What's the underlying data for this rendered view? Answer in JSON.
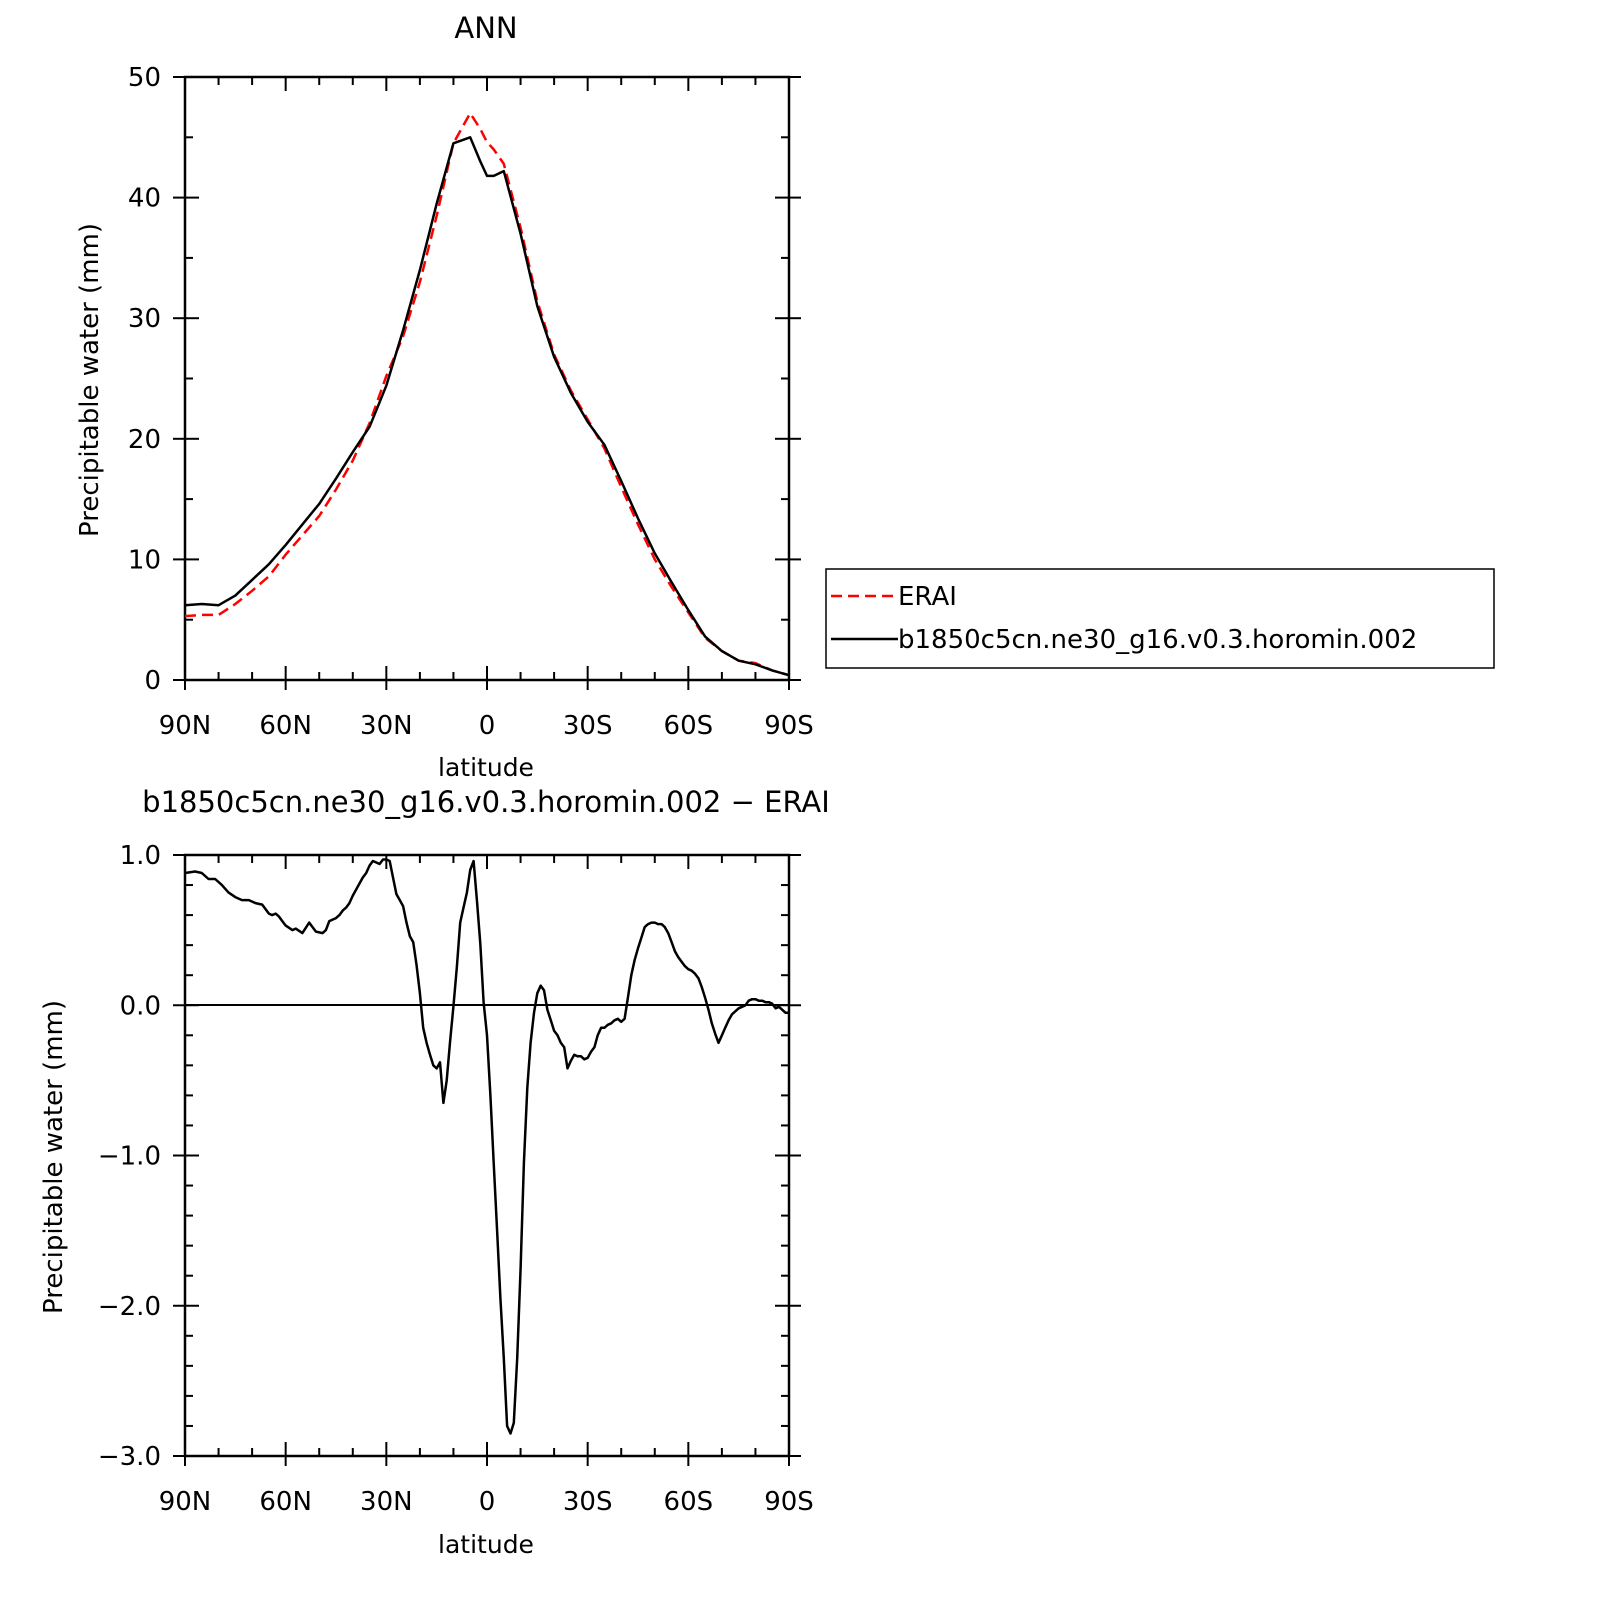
{
  "chart_data": [
    {
      "type": "line",
      "title": "ANN",
      "xlabel": "latitude",
      "ylabel": "Precipitable water (mm)",
      "xlim": [
        90,
        -90
      ],
      "ylim": [
        0,
        50
      ],
      "x_ticks": [
        {
          "value": 90,
          "label": "90N"
        },
        {
          "value": 60,
          "label": "60N"
        },
        {
          "value": 30,
          "label": "30N"
        },
        {
          "value": 0,
          "label": "0"
        },
        {
          "value": -30,
          "label": "30S"
        },
        {
          "value": -60,
          "label": "60S"
        },
        {
          "value": -90,
          "label": "90S"
        }
      ],
      "y_ticks": [
        {
          "value": 0,
          "label": "0"
        },
        {
          "value": 10,
          "label": "10"
        },
        {
          "value": 20,
          "label": "20"
        },
        {
          "value": 30,
          "label": "30"
        },
        {
          "value": 40,
          "label": "40"
        },
        {
          "value": 50,
          "label": "50"
        }
      ],
      "legend_position": "right",
      "series": [
        {
          "name": "ERAI",
          "color": "#ff0000",
          "style": "dashed",
          "x": [
            90,
            85,
            80,
            75,
            70,
            65,
            60,
            55,
            50,
            45,
            40,
            35,
            30,
            25,
            20,
            15,
            10,
            5,
            2,
            0,
            -2,
            -5,
            -10,
            -15,
            -20,
            -25,
            -30,
            -35,
            -40,
            -45,
            -50,
            -55,
            -60,
            -65,
            -70,
            -75,
            -80,
            -85,
            -90
          ],
          "values": [
            5.3,
            5.4,
            5.4,
            6.3,
            7.4,
            8.6,
            10.4,
            12.0,
            13.6,
            15.8,
            18.2,
            21.3,
            25.2,
            28.5,
            33.0,
            38.5,
            44.5,
            47.0,
            45.7,
            44.6,
            44.0,
            42.8,
            37.5,
            31.4,
            27.0,
            24.0,
            21.6,
            19.2,
            16.0,
            12.9,
            10.0,
            7.7,
            5.6,
            3.5,
            2.4,
            1.6,
            1.4,
            0.8,
            0.4
          ]
        },
        {
          "name": "b1850c5cn.ne30_g16.v0.3.horomin.002",
          "color": "#000000",
          "style": "solid",
          "x": [
            90,
            85,
            80,
            75,
            70,
            65,
            60,
            55,
            50,
            45,
            40,
            35,
            30,
            25,
            20,
            15,
            10,
            5,
            2,
            0,
            -2,
            -5,
            -10,
            -15,
            -20,
            -25,
            -30,
            -35,
            -40,
            -45,
            -50,
            -55,
            -60,
            -65,
            -70,
            -75,
            -80,
            -85,
            -90
          ],
          "values": [
            6.2,
            6.3,
            6.2,
            7.0,
            8.3,
            9.6,
            11.2,
            12.9,
            14.6,
            16.7,
            18.9,
            21.0,
            24.4,
            29.0,
            34.0,
            39.5,
            44.5,
            45.0,
            43.0,
            41.8,
            41.8,
            42.2,
            37.0,
            31.0,
            26.8,
            23.8,
            21.4,
            19.5,
            16.5,
            13.4,
            10.5,
            8.1,
            5.8,
            3.6,
            2.4,
            1.6,
            1.3,
            0.8,
            0.4
          ]
        }
      ]
    },
    {
      "type": "line",
      "title": "b1850c5cn.ne30_g16.v0.3.horomin.002 − ERAI",
      "xlabel": "latitude",
      "ylabel": "Precipitable water (mm)",
      "xlim": [
        90,
        -90
      ],
      "ylim": [
        -3,
        1
      ],
      "x_ticks": [
        {
          "value": 90,
          "label": "90N"
        },
        {
          "value": 60,
          "label": "60N"
        },
        {
          "value": 30,
          "label": "30N"
        },
        {
          "value": 0,
          "label": "0"
        },
        {
          "value": -30,
          "label": "30S"
        },
        {
          "value": -60,
          "label": "60S"
        },
        {
          "value": -90,
          "label": "90S"
        }
      ],
      "y_ticks": [
        {
          "value": 1,
          "label": "1.0"
        },
        {
          "value": 0,
          "label": "0.0"
        },
        {
          "value": -1,
          "label": "−1.0"
        },
        {
          "value": -2,
          "label": "−2.0"
        },
        {
          "value": -3,
          "label": "−3.0"
        }
      ],
      "series": [
        {
          "color": "#000000",
          "style": "solid",
          "x": [
            90,
            87,
            85,
            83,
            81,
            79,
            77,
            75,
            73,
            71,
            69,
            67,
            65,
            64,
            63,
            62,
            61,
            60,
            58,
            57,
            55,
            53,
            51,
            49,
            48,
            47,
            46,
            45,
            44,
            43,
            42,
            41,
            40,
            39,
            38,
            37,
            36,
            35,
            34,
            33,
            32,
            31,
            30,
            29,
            28,
            27,
            26,
            25,
            24,
            23,
            22,
            21,
            20,
            19,
            18,
            17,
            16,
            15,
            14,
            13,
            12,
            11,
            10,
            9,
            8,
            7,
            6,
            5,
            4,
            3,
            2,
            1,
            0,
            -1,
            -2,
            -3,
            -4,
            -5,
            -6,
            -7,
            -8,
            -9,
            -10,
            -11,
            -12,
            -13,
            -14,
            -15,
            -16,
            -17,
            -18,
            -19,
            -20,
            -21,
            -22,
            -23,
            -24,
            -25,
            -26,
            -27,
            -28,
            -29,
            -30,
            -31,
            -32,
            -33,
            -34,
            -35,
            -36,
            -37,
            -38,
            -39,
            -40,
            -41,
            -42,
            -43,
            -44,
            -45,
            -46,
            -47,
            -48,
            -49,
            -50,
            -51,
            -52,
            -53,
            -54,
            -55,
            -56,
            -57,
            -58,
            -59,
            -60,
            -61,
            -62,
            -63,
            -64,
            -65,
            -66,
            -67,
            -68,
            -69,
            -70,
            -71,
            -72,
            -73,
            -74,
            -75,
            -76,
            -77,
            -78,
            -79,
            -80,
            -81,
            -82,
            -83,
            -84,
            -85,
            -86,
            -87,
            -88,
            -89,
            -90
          ],
          "values": [
            0.88,
            0.89,
            0.88,
            0.84,
            0.84,
            0.8,
            0.75,
            0.72,
            0.7,
            0.7,
            0.68,
            0.67,
            0.61,
            0.6,
            0.61,
            0.59,
            0.56,
            0.53,
            0.5,
            0.51,
            0.48,
            0.55,
            0.49,
            0.48,
            0.5,
            0.56,
            0.57,
            0.58,
            0.6,
            0.63,
            0.65,
            0.68,
            0.73,
            0.77,
            0.81,
            0.85,
            0.88,
            0.93,
            0.96,
            0.95,
            0.94,
            0.97,
            0.97,
            0.96,
            0.85,
            0.74,
            0.7,
            0.66,
            0.55,
            0.46,
            0.42,
            0.27,
            0.08,
            -0.15,
            -0.25,
            -0.33,
            -0.4,
            -0.42,
            -0.38,
            -0.65,
            -0.5,
            -0.24,
            -0.01,
            0.25,
            0.55,
            0.65,
            0.75,
            0.9,
            0.96,
            0.7,
            0.41,
            0.02,
            -0.2,
            -0.6,
            -1.05,
            -1.5,
            -1.95,
            -2.35,
            -2.8,
            -2.85,
            -2.78,
            -2.35,
            -1.75,
            -1.05,
            -0.55,
            -0.25,
            -0.05,
            0.08,
            0.13,
            0.1,
            -0.03,
            -0.1,
            -0.17,
            -0.2,
            -0.25,
            -0.28,
            -0.42,
            -0.37,
            -0.33,
            -0.34,
            -0.34,
            -0.36,
            -0.35,
            -0.31,
            -0.28,
            -0.2,
            -0.15,
            -0.15,
            -0.13,
            -0.12,
            -0.1,
            -0.09,
            -0.11,
            -0.09,
            0.05,
            0.2,
            0.3,
            0.38,
            0.45,
            0.52,
            0.54,
            0.55,
            0.55,
            0.54,
            0.54,
            0.52,
            0.48,
            0.42,
            0.36,
            0.32,
            0.29,
            0.26,
            0.24,
            0.23,
            0.21,
            0.18,
            0.12,
            0.05,
            -0.03,
            -0.12,
            -0.19,
            -0.25,
            -0.2,
            -0.15,
            -0.1,
            -0.06,
            -0.04,
            -0.02,
            -0.01,
            0.0,
            0.03,
            0.04,
            0.04,
            0.03,
            0.03,
            0.02,
            0.02,
            0.01,
            -0.02,
            -0.01,
            -0.03,
            -0.05,
            -0.05
          ]
        }
      ]
    }
  ]
}
